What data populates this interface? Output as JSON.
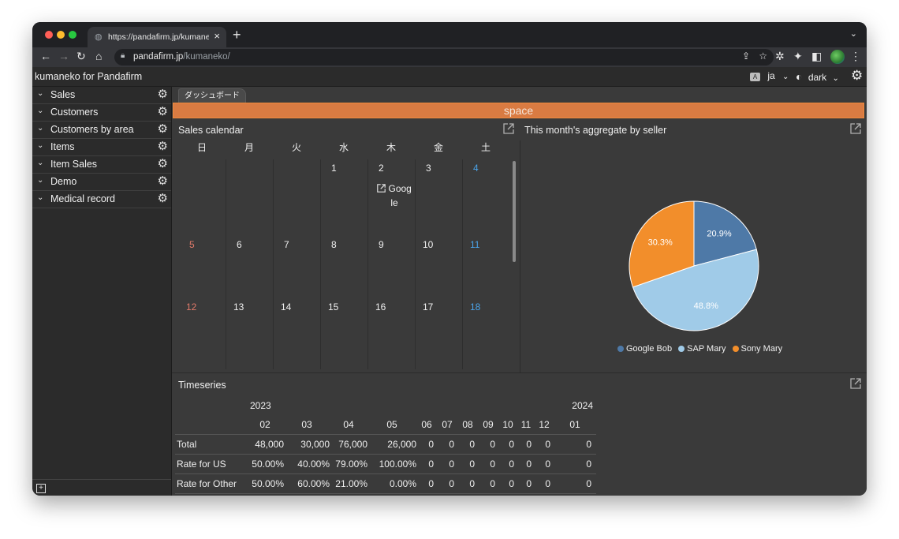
{
  "browser": {
    "tab_title": "https://pandafirm.jp/kumaneko/",
    "url_host": "pandafirm.jp",
    "url_path": "/kumaneko/"
  },
  "app": {
    "title": "kumaneko for Pandafirm",
    "language": "ja",
    "theme": "dark"
  },
  "sidebar": {
    "items": [
      {
        "label": "Sales"
      },
      {
        "label": "Customers"
      },
      {
        "label": "Customers by area"
      },
      {
        "label": "Items"
      },
      {
        "label": "Item Sales"
      },
      {
        "label": "Demo"
      },
      {
        "label": "Medical record"
      }
    ]
  },
  "dashboard": {
    "tab_label": "ダッシュボード",
    "space_label": "space"
  },
  "calendar": {
    "title": "Sales calendar",
    "weekdays": [
      "日",
      "月",
      "火",
      "水",
      "木",
      "金",
      "土"
    ],
    "weeks": [
      [
        "",
        "",
        "",
        "1",
        "2",
        "3",
        "4"
      ],
      [
        "5",
        "6",
        "7",
        "8",
        "9",
        "10",
        "11"
      ],
      [
        "12",
        "13",
        "14",
        "15",
        "16",
        "17",
        "18"
      ]
    ],
    "event": {
      "text_line1": "Goog",
      "text_line2": "le"
    }
  },
  "pie": {
    "title": "This month's aggregate by seller",
    "colors": {
      "google": "#4e79a7",
      "sap": "#a0cbe8",
      "sony": "#f28e2b"
    }
  },
  "chart_data": {
    "type": "pie",
    "labels": [
      "Google Bob",
      "SAP Mary",
      "Sony Mary"
    ],
    "values": [
      20.9,
      48.8,
      30.3
    ],
    "value_labels": [
      "20.9%",
      "48.8%",
      "30.3%"
    ],
    "legend": "bottom"
  },
  "timeseries": {
    "title": "Timeseries",
    "years": [
      "2023",
      "2024"
    ],
    "months": [
      "02",
      "03",
      "04",
      "05",
      "06",
      "07",
      "08",
      "09",
      "10",
      "11",
      "12",
      "01"
    ],
    "rows": [
      {
        "label": "Total",
        "values": [
          "48,000",
          "30,000",
          "76,000",
          "26,000",
          "0",
          "0",
          "0",
          "0",
          "0",
          "0",
          "0",
          "0"
        ]
      },
      {
        "label": "Rate for US",
        "values": [
          "50.00%",
          "40.00%",
          "79.00%",
          "100.00%",
          "0",
          "0",
          "0",
          "0",
          "0",
          "0",
          "0",
          "0"
        ]
      },
      {
        "label": "Rate for Other",
        "values": [
          "50.00%",
          "60.00%",
          "21.00%",
          "0.00%",
          "0",
          "0",
          "0",
          "0",
          "0",
          "0",
          "0",
          "0"
        ]
      }
    ]
  }
}
